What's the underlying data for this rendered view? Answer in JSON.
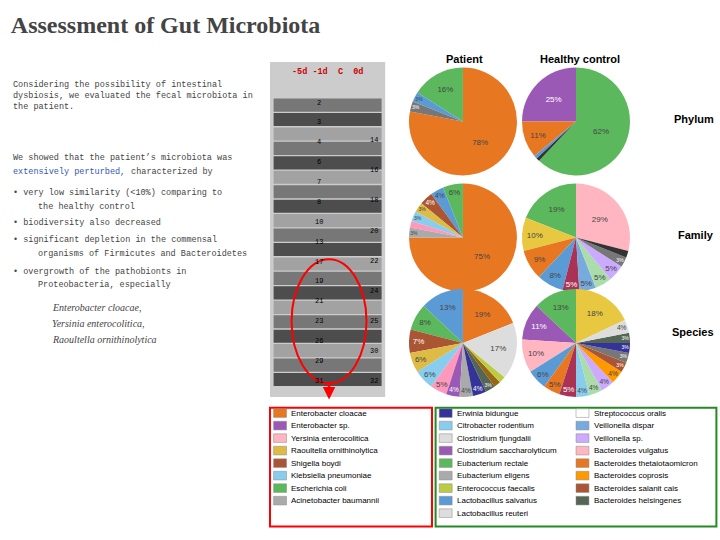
{
  "title": "Assessment of Gut Microbiota",
  "annotations": [
    {
      "text": "Considering the possibility of intestinal\ndysbiosis, we evaluated the fecal microbiota in\nthe patient."
    },
    {
      "text": "We showed that the patient’s microbiota was"
    },
    {
      "text": "extensively perturbed,",
      "color": "#3355BB"
    },
    {
      "text": " characterized by"
    },
    {
      "text": "• very low similarity (<10%) comparing to"
    },
    {
      "text": "the healthy control"
    },
    {
      "text": "• biodiversity also decreased"
    },
    {
      "text": "• significant depletion in the commensal"
    },
    {
      "text": "organisms of Firmicutes and Bacteroidetes"
    },
    {
      "text": "• overgrowth of the pathobionts in"
    },
    {
      "text": "Proteobacteria, especially"
    },
    {
      "text": "Enterobacter cloacae,"
    },
    {
      "text": "Yersinia enterocolitica,"
    },
    {
      "text": "Raoultella ornithinolytica"
    },
    {
      "text": "-5d -1d  C  0d",
      "color": "#CC0000"
    },
    {
      "text": "Patient"
    },
    {
      "text": "Healthy control"
    },
    {
      "text": "Phylum"
    },
    {
      "text": "Family"
    },
    {
      "text": "Species"
    }
  ],
  "gel_labels_left": [
    "2",
    "3",
    "4",
    "6",
    "7",
    "8",
    "10",
    "13",
    "17",
    "19",
    "21",
    "23",
    "26",
    "29",
    "31"
  ],
  "gel_labels_right": [
    "14",
    "16",
    "18",
    "20",
    "22",
    "24",
    "25",
    "30",
    "32"
  ],
  "legend_boxes": [
    {
      "color": "red",
      "columns": [
        [
          {
            "name": "Enterobacter cloacae",
            "color": "#E87722"
          },
          {
            "name": "Enterobacter sp.",
            "color": "#9B59B6"
          },
          {
            "name": "Yersinia enterocolitica",
            "color": "#FFB6C1"
          },
          {
            "name": "Raoultella ornithinolytica",
            "color": "#DDBB44"
          },
          {
            "name": "Shigella boydi",
            "color": "#AA5533"
          },
          {
            "name": "Klebsiella pneumoniae",
            "color": "#88CCEE"
          },
          {
            "name": "Escherichia coli",
            "color": "#5CB85C"
          },
          {
            "name": "Acinetobacter baumannii",
            "color": "#AAAAAA"
          }
        ]
      ]
    },
    {
      "color": "#228B22",
      "columns": [
        [
          {
            "name": "Erwinia bidungue",
            "color": "#333399"
          },
          {
            "name": "Citrobacter rodentium",
            "color": "#88CCEE"
          },
          {
            "name": "Clostridium fjungdalii",
            "color": "#DDDDDD"
          },
          {
            "name": "Clostridium saccharolyticum",
            "color": "#9B59B6"
          },
          {
            "name": "Eubacterium rectale",
            "color": "#5CB85C"
          },
          {
            "name": "Eubacterium eligens",
            "color": "#AAAAAA"
          },
          {
            "name": "Enterococcus faecalis",
            "color": "#BBCC44"
          },
          {
            "name": "Lactobacillus salvarius",
            "color": "#5B9BD5"
          },
          {
            "name": "Lactobacillus reuteri",
            "color": "#DDDDDD"
          }
        ],
        [
          {
            "name": "Streptococcus oralis",
            "color": "#FFFFFF"
          },
          {
            "name": "Veillonella dispar",
            "color": "#77AADD"
          },
          {
            "name": "Veillonella sp.",
            "color": "#CCAAFF"
          },
          {
            "name": "Bacteroides vulgatus",
            "color": "#FFB6C1"
          },
          {
            "name": "Bacteroides thetaiotaomicron",
            "color": "#E87722"
          },
          {
            "name": "Bacteroides coprosis",
            "color": "#FF9900"
          },
          {
            "name": "Bacteroides salanit cais",
            "color": "#AA5533"
          },
          {
            "name": "Bacteroides helsingenes",
            "color": "#556655"
          }
        ]
      ]
    }
  ],
  "chart_data": [
    {
      "type": "pie",
      "data_labels": true,
      "values": [
        78,
        16,
        3,
        3
      ],
      "value_labels": [
        "78%",
        "16%",
        "3%",
        "3%"
      ],
      "colors": [
        "#E87722",
        "#5CB85C",
        "#5B9BD5",
        "#777777"
      ]
    },
    {
      "type": "pie",
      "data_labels": true,
      "values": [
        62,
        25,
        11,
        1,
        1
      ],
      "value_labels": [
        "62%",
        "25%",
        "11%",
        null,
        null
      ],
      "colors": [
        "#5CB85C",
        "#9B59B6",
        "#E87722",
        "#5B9BD5",
        "#333333"
      ]
    },
    {
      "type": "pie",
      "data_labels": true,
      "values": [
        75,
        6,
        4,
        4,
        3,
        3,
        2,
        3
      ],
      "value_labels": [
        "75%",
        "6%",
        "4%",
        "4%",
        "3%",
        "3%",
        null,
        "3%"
      ],
      "colors": [
        "#E87722",
        "#5CB85C",
        "#5B9BD5",
        "#AA5533",
        "#DDBB44",
        "#88CCEE",
        "#FF99BB",
        "#AAAAAA"
      ]
    },
    {
      "type": "pie",
      "data_labels": true,
      "values": [
        29,
        19,
        10,
        9,
        8,
        5,
        5,
        5,
        5,
        3,
        2
      ],
      "value_labels": [
        "29%",
        "19%",
        "10%",
        "9%",
        "8%",
        "5%",
        "5%",
        "5%",
        "5%",
        "3%",
        null
      ],
      "colors": [
        "#FFB6C1",
        "#5CB85C",
        "#E8C840",
        "#E87722",
        "#5B9BD5",
        "#AA3355",
        "#77AADD",
        "#AADDAA",
        "#CCAAFF",
        "#777777",
        "#333333"
      ]
    },
    {
      "type": "pie",
      "data_labels": true,
      "values": [
        19,
        13,
        8,
        7,
        6,
        6,
        5,
        4,
        4,
        4,
        3,
        2,
        2,
        17
      ],
      "value_labels": [
        "19%",
        "13%",
        "8%",
        "7%",
        "6%",
        "6%",
        "5%",
        "4%",
        "4%",
        "4%",
        "3%",
        null,
        null,
        "17%"
      ],
      "colors": [
        "#E87722",
        "#5B9BD5",
        "#5CB85C",
        "#AA5533",
        "#DDBB44",
        "#88CCEE",
        "#FF99BB",
        "#9B59B6",
        "#AAAAAA",
        "#333399",
        "#556655",
        "#996611",
        "#BBCC44",
        "#DDDDDD"
      ]
    },
    {
      "type": "pie",
      "data_labels": true,
      "values": [
        18,
        13,
        11,
        10,
        6,
        5,
        5,
        4,
        4,
        4,
        4,
        3,
        3,
        3,
        3,
        4
      ],
      "value_labels": [
        "18%",
        "13%",
        "11%",
        "10%",
        "6%",
        "5%",
        "5%",
        "4%",
        "4%",
        "4%",
        "4%",
        "3%",
        "3%",
        "3%",
        "3%",
        "4%"
      ],
      "colors": [
        "#E8C840",
        "#5CB85C",
        "#9B59B6",
        "#FFB6C1",
        "#5B9BD5",
        "#E87722",
        "#AA3355",
        "#88CCEE",
        "#AADDAA",
        "#CCAAFF",
        "#FF9900",
        "#AA5533",
        "#777777",
        "#333399",
        "#556655",
        "#DDDDDD"
      ]
    }
  ]
}
